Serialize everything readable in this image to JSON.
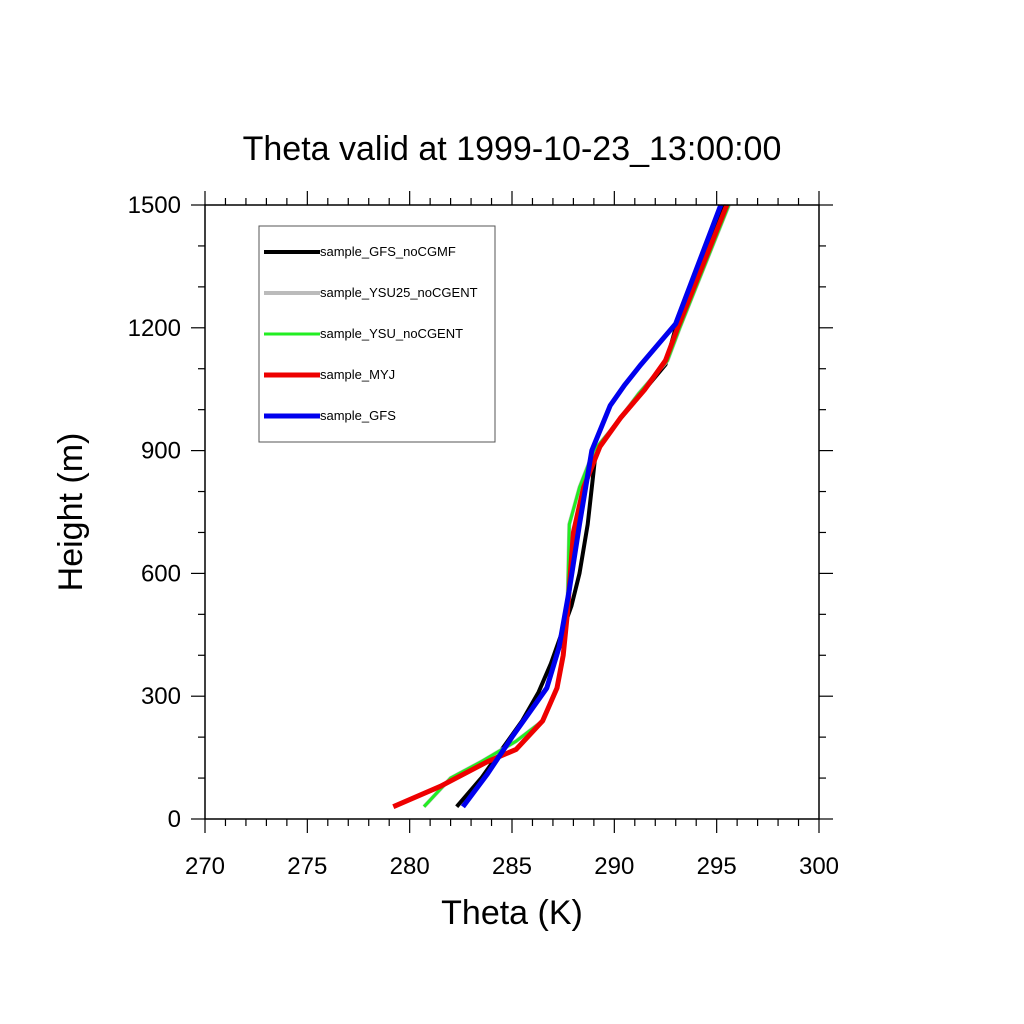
{
  "chart_data": {
    "type": "line",
    "title": "Theta valid at 1999-10-23_13:00:00",
    "xlabel": "Theta (K)",
    "ylabel": "Height (m)",
    "xlim": [
      270,
      300
    ],
    "ylim": [
      0,
      1500
    ],
    "xticks": [
      270,
      275,
      280,
      285,
      290,
      295,
      300
    ],
    "yticks": [
      0,
      300,
      600,
      900,
      1200,
      1500
    ],
    "grid": false,
    "legend_position": "top-left",
    "series": [
      {
        "name": "sample_GFS_noCGMF",
        "color": "#000000",
        "x": [
          282.3,
          283.5,
          284.5,
          285.5,
          286.3,
          286.9,
          287.4,
          287.9,
          288.3,
          288.7,
          289.1,
          290.0,
          291.0,
          292.5,
          293.0,
          295.3
        ],
        "y": [
          30,
          100,
          170,
          240,
          310,
          380,
          450,
          520,
          600,
          720,
          900,
          960,
          1020,
          1110,
          1200,
          1500
        ]
      },
      {
        "name": "sample_YSU25_noCGENT",
        "color": "#bbbbbb",
        "x": [
          280.7,
          282.0,
          283.5,
          285.2,
          286.5,
          287.2,
          287.5,
          287.7,
          287.8,
          288.3,
          289.0,
          290.0,
          291.2,
          292.6,
          293.2,
          295.6
        ],
        "y": [
          30,
          100,
          140,
          190,
          240,
          320,
          400,
          500,
          720,
          810,
          900,
          960,
          1040,
          1120,
          1200,
          1500
        ]
      },
      {
        "name": "sample_YSU_noCGENT",
        "color": "#22ee22",
        "x": [
          280.7,
          282.0,
          283.5,
          285.2,
          286.5,
          287.2,
          287.5,
          287.7,
          287.8,
          288.3,
          289.0,
          290.0,
          291.2,
          292.6,
          293.2,
          295.6
        ],
        "y": [
          30,
          100,
          140,
          190,
          240,
          320,
          400,
          500,
          720,
          810,
          900,
          960,
          1040,
          1120,
          1200,
          1500
        ]
      },
      {
        "name": "sample_MYJ",
        "color": "#ee0000",
        "x": [
          279.2,
          281.5,
          283.8,
          285.2,
          286.5,
          287.2,
          287.5,
          287.7,
          288.0,
          288.5,
          289.3,
          290.3,
          291.5,
          292.5,
          293.1,
          295.5
        ],
        "y": [
          30,
          80,
          140,
          170,
          240,
          320,
          400,
          500,
          700,
          810,
          910,
          980,
          1050,
          1120,
          1200,
          1500
        ]
      },
      {
        "name": "sample_GFS",
        "color": "#0000ee",
        "x": [
          282.6,
          283.8,
          285.0,
          286.7,
          287.3,
          287.8,
          288.3,
          288.9,
          289.8,
          290.5,
          291.3,
          293.0,
          295.2
        ],
        "y": [
          30,
          110,
          200,
          320,
          420,
          560,
          720,
          900,
          1010,
          1060,
          1110,
          1210,
          1500
        ]
      }
    ]
  }
}
